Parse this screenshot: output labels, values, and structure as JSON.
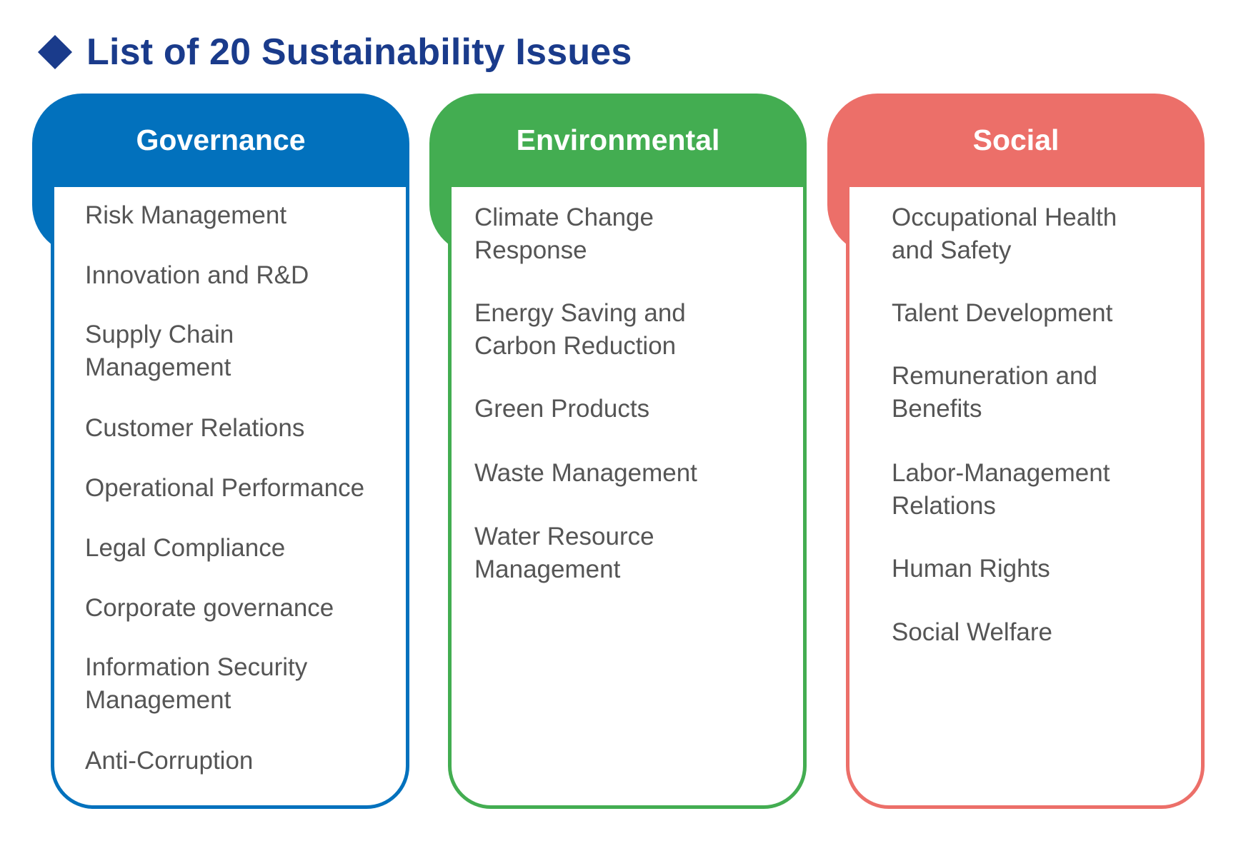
{
  "title": "List of 20 Sustainability Issues",
  "colors": {
    "title": "#1a3b8b",
    "governance": "#0271bd",
    "environmental": "#43ad51",
    "social": "#ec6f69",
    "item_text": "#555555"
  },
  "columns": [
    {
      "heading": "Governance",
      "items": [
        "Risk Management",
        "Innovation and R&D",
        "Supply Chain\nManagement",
        "Customer Relations",
        "Operational Performance",
        "Legal Compliance",
        "Corporate governance",
        "Information Security\nManagement",
        "Anti-Corruption"
      ]
    },
    {
      "heading": "Environmental",
      "items": [
        "Climate Change\nResponse",
        "Energy Saving and\nCarbon Reduction",
        "Green Products",
        "Waste Management",
        "Water Resource\nManagement"
      ]
    },
    {
      "heading": "Social",
      "items": [
        "Occupational Health\nand Safety",
        "Talent Development",
        "Remuneration and\nBenefits",
        "Labor-Management\nRelations",
        "Human Rights",
        "Social Welfare"
      ]
    }
  ]
}
